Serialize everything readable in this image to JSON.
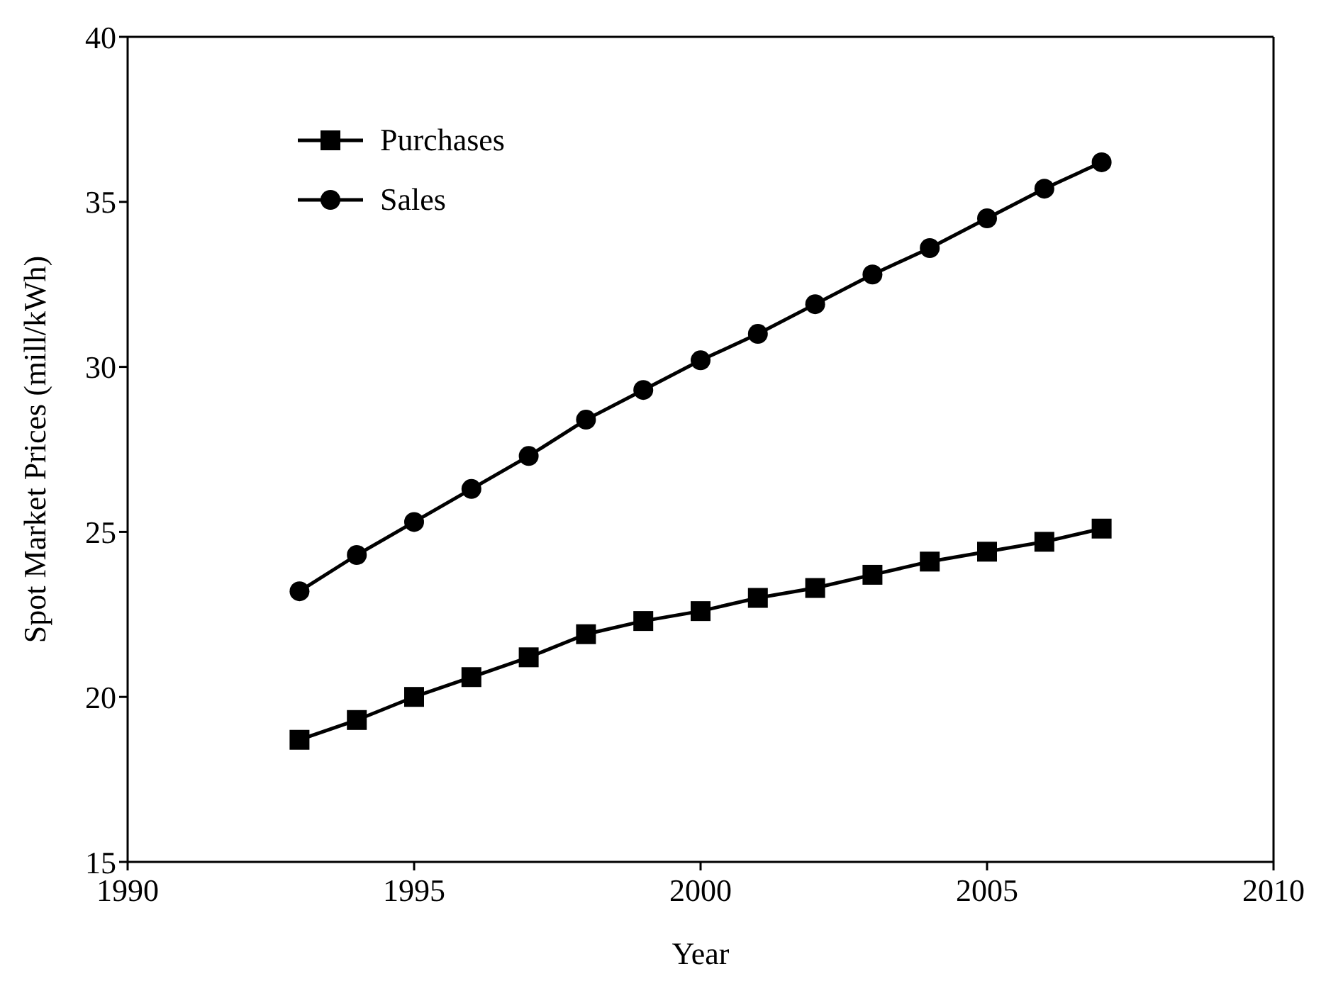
{
  "chart_data": {
    "type": "line",
    "xlabel": "Year",
    "ylabel": "Spot Market Prices (mill/kWh)",
    "x": [
      1993,
      1994,
      1995,
      1996,
      1997,
      1998,
      1999,
      2000,
      2001,
      2002,
      2003,
      2004,
      2005,
      2006,
      2007
    ],
    "series": [
      {
        "name": "Purchases",
        "color": "#000000",
        "marker": "square",
        "values": [
          18.7,
          19.3,
          20.0,
          20.6,
          21.2,
          21.9,
          22.3,
          22.6,
          23.0,
          23.3,
          23.7,
          24.1,
          24.4,
          24.7,
          25.1
        ]
      },
      {
        "name": "Sales",
        "color": "#000000",
        "marker": "circle",
        "values": [
          23.2,
          24.3,
          25.3,
          26.3,
          27.3,
          28.4,
          29.3,
          30.2,
          31.0,
          31.9,
          32.8,
          33.6,
          34.5,
          35.4,
          36.2
        ]
      }
    ],
    "xlim": [
      1990,
      2010
    ],
    "xticks": [
      1990,
      1995,
      2000,
      2005,
      2010
    ],
    "ylim": [
      15,
      40
    ],
    "yticks": [
      15,
      20,
      25,
      30,
      35,
      40
    ],
    "grid": false,
    "legend": "top left",
    "line_style": "solid"
  }
}
